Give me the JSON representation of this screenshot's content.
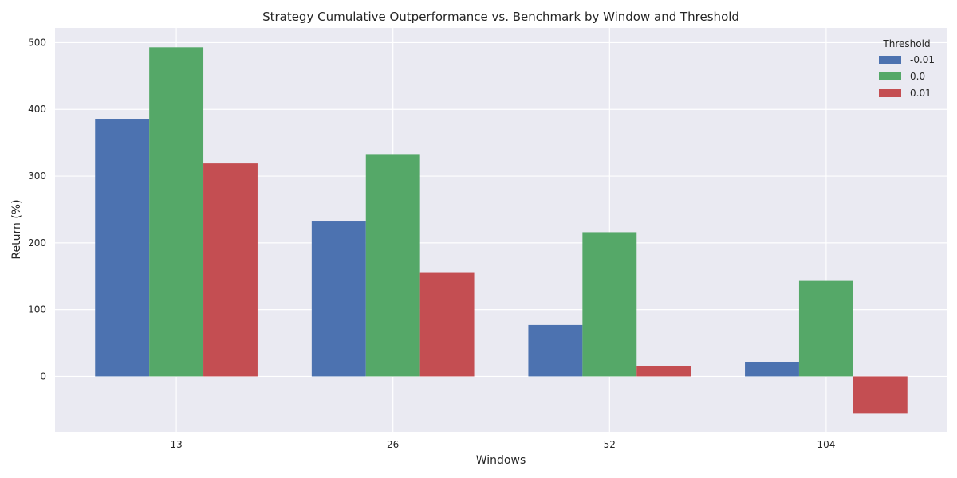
{
  "chart_data": {
    "type": "bar",
    "title": "Strategy Cumulative Outperformance vs. Benchmark by Window and Threshold",
    "xlabel": "Windows",
    "ylabel": "Return (%)",
    "categories": [
      "13",
      "26",
      "52",
      "104"
    ],
    "ylim": [
      -83,
      522
    ],
    "yticks": [
      0,
      100,
      200,
      300,
      400,
      500
    ],
    "grid": true,
    "legend": {
      "title": "Threshold",
      "placement": "top-right"
    },
    "series": [
      {
        "name": "-0.01",
        "color": "#4c72b0",
        "values": [
          385,
          232,
          77,
          21
        ]
      },
      {
        "name": "0.0",
        "color": "#55a868",
        "values": [
          493,
          333,
          216,
          143
        ]
      },
      {
        "name": "0.01",
        "color": "#c44e52",
        "values": [
          319,
          155,
          15,
          -56
        ]
      }
    ]
  },
  "colors": {
    "plot_background": "#eaeaf2",
    "grid": "#ffffff"
  }
}
